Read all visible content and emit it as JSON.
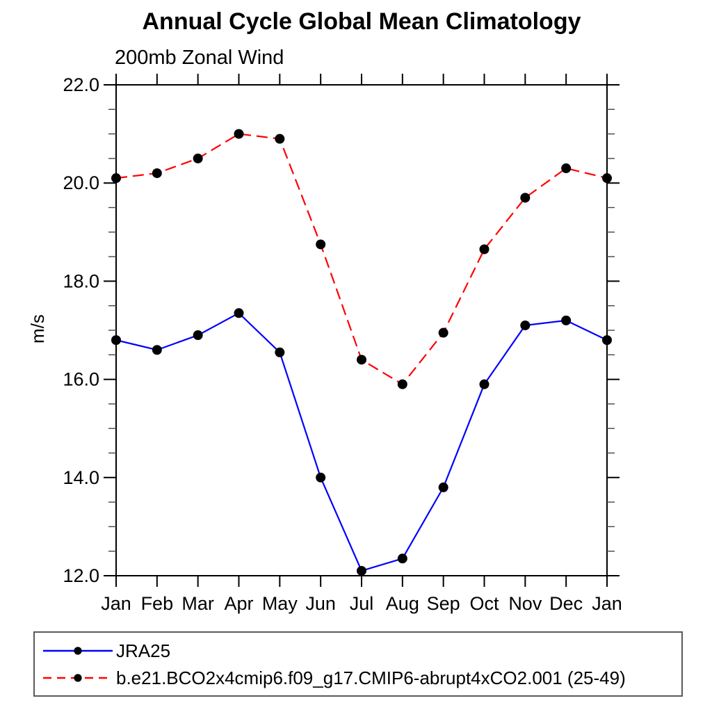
{
  "chart_data": {
    "type": "line",
    "title": "Annual Cycle Global Mean Climatology",
    "subtitle": "200mb Zonal Wind",
    "ylabel": "m/s",
    "xlabel": "",
    "categories": [
      "Jan",
      "Feb",
      "Mar",
      "Apr",
      "May",
      "Jun",
      "Jul",
      "Aug",
      "Sep",
      "Oct",
      "Nov",
      "Dec",
      "Jan"
    ],
    "series": [
      {
        "name": "JRA25",
        "color": "#0000ff",
        "line_style": "solid",
        "marker": "filled-circle",
        "marker_color": "#000000",
        "values": [
          16.8,
          16.6,
          16.9,
          17.35,
          16.55,
          14.0,
          12.1,
          12.35,
          13.8,
          15.9,
          17.1,
          17.2,
          16.8
        ]
      },
      {
        "name": "b.e21.BCO2x4cmip6.f09_g17.CMIP6-abrupt4xCO2.001 (25-49)",
        "color": "#ff0000",
        "line_style": "dashed",
        "marker": "filled-circle",
        "marker_color": "#000000",
        "values": [
          20.1,
          20.2,
          20.5,
          21.0,
          20.9,
          18.75,
          16.4,
          15.9,
          16.95,
          18.65,
          19.7,
          20.3,
          20.1
        ]
      }
    ],
    "ylim": [
      12.0,
      22.0
    ],
    "ytick_step": 2.0,
    "yminor_step": 0.5,
    "ytick_labels": [
      "12.0",
      "14.0",
      "16.0",
      "18.0",
      "20.0",
      "22.0"
    ],
    "grid": false,
    "legend_position": "bottom-left-box",
    "axis_color": "#000000"
  }
}
